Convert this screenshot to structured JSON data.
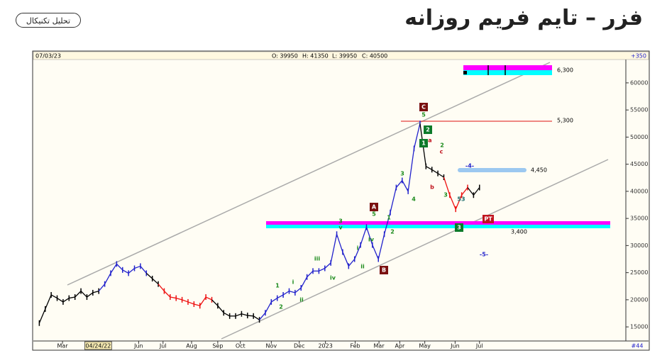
{
  "header": {
    "title": "فزر – تایم فریم روزانه",
    "button": "تحلیل تکنیکال"
  },
  "chart_data": {
    "type": "price",
    "info": {
      "date": "07/03/23",
      "open": "O: 39950",
      "high": "H: 41350",
      "low": "L: 39950",
      "close": "C: 40500",
      "change": "+350"
    },
    "corner": "#44",
    "categories": [
      null,
      null,
      null,
      null,
      null,
      null,
      null,
      null,
      null,
      null,
      null,
      null,
      null,
      null,
      null,
      null,
      null,
      null,
      null,
      null,
      null,
      null,
      null,
      null,
      null,
      null,
      null,
      null,
      null,
      null,
      null,
      null,
      null,
      null,
      null,
      null,
      null,
      null,
      null,
      null,
      null,
      null,
      null,
      null,
      null,
      null,
      null,
      null,
      null,
      null,
      null,
      null,
      null,
      null,
      null,
      null,
      null,
      null,
      null,
      null,
      null,
      null,
      null,
      null,
      null,
      null,
      null,
      null,
      null,
      null,
      null,
      null,
      null,
      null,
      null
    ],
    "values": [
      15700,
      18300,
      20900,
      20300,
      19600,
      20300,
      20500,
      21600,
      20500,
      21300,
      21600,
      22900,
      24900,
      26600,
      25500,
      24900,
      25800,
      26200,
      24900,
      23900,
      22900,
      21600,
      20500,
      20300,
      20000,
      19600,
      19200,
      18900,
      20500,
      20000,
      18900,
      17600,
      17000,
      17000,
      17400,
      17100,
      17000,
      16300,
      17600,
      19600,
      20300,
      20900,
      21600,
      21300,
      22200,
      24200,
      25300,
      25300,
      25800,
      26800,
      32100,
      28800,
      26200,
      27500,
      30100,
      33400,
      30100,
      27500,
      32100,
      36100,
      40700,
      42000,
      40000,
      47900,
      52500,
      44600,
      44000,
      43300,
      42600,
      39300,
      36700,
      39300,
      40700,
      39300,
      40700
    ],
    "point_colors": [
      "#000",
      "#000",
      "#000",
      "#000",
      "#000",
      "#000",
      "#000",
      "#000",
      "#000",
      "#000",
      "#000",
      "#22c",
      "#22c",
      "#22c",
      "#22c",
      "#22c",
      "#22c",
      "#22c",
      "#22c",
      "#000",
      "#000",
      "#e11",
      "#e11",
      "#e11",
      "#e11",
      "#e11",
      "#e11",
      "#e11",
      "#e11",
      "#e11",
      "#000",
      "#000",
      "#000",
      "#000",
      "#000",
      "#000",
      "#000",
      "#000",
      "#22c",
      "#22c",
      "#22c",
      "#22c",
      "#22c",
      "#22c",
      "#22c",
      "#22c",
      "#22c",
      "#22c",
      "#22c",
      "#22c",
      "#22c",
      "#22c",
      "#22c",
      "#22c",
      "#22c",
      "#22c",
      "#22c",
      "#22c",
      "#22c",
      "#22c",
      "#22c",
      "#22c",
      "#22c",
      "#22c",
      "#22c",
      "#000",
      "#000",
      "#000",
      "#000",
      "#e11",
      "#e11",
      "#e11",
      "#e11",
      "#000",
      "#000"
    ],
    "ylim": [
      12400,
      64300
    ],
    "yticks": [
      15000,
      20000,
      25000,
      30000,
      35000,
      40000,
      45000,
      50000,
      55000,
      60000
    ],
    "xticks": [
      {
        "value": 3.9,
        "label": "Mar"
      },
      {
        "value": 9.9,
        "label": "04/24/22"
      },
      {
        "value": 16.7,
        "label": "Jun"
      },
      {
        "value": 20.8,
        "label": "Jul"
      },
      {
        "value": 25.6,
        "label": "Aug"
      },
      {
        "value": 30.0,
        "label": "Sep"
      },
      {
        "value": 33.8,
        "label": "Oct"
      },
      {
        "value": 39.0,
        "label": "Nov"
      },
      {
        "value": 43.7,
        "label": "Dec"
      },
      {
        "value": 48.1,
        "label": "2023"
      },
      {
        "value": 53.1,
        "label": "Feb"
      },
      {
        "value": 57.1,
        "label": "Mar"
      },
      {
        "value": 60.6,
        "label": "Apr"
      },
      {
        "value": 64.8,
        "label": "May"
      },
      {
        "value": 69.9,
        "label": "Jun"
      },
      {
        "value": 74.0,
        "label": "Jul"
      }
    ],
    "xlim": [
      -1,
      98.6
    ],
    "levels": [
      "6,300",
      "5,300",
      "4,450",
      "3,400"
    ],
    "wave_labels": [
      {
        "text": "C",
        "color": "#7a1010",
        "box": true
      },
      {
        "text": "5",
        "color": "#1a8a1a",
        "box": false
      },
      {
        "text": "2",
        "color": "#0d7a2a",
        "box": true
      },
      {
        "text": "1",
        "color": "#0d7a2a",
        "box": true
      },
      {
        "text": "a",
        "color": "#c0141e",
        "box": false
      },
      {
        "text": "2",
        "color": "#1a8a1a",
        "box": false
      },
      {
        "text": "c",
        "color": "#c0141e",
        "box": false
      },
      {
        "text": "3",
        "color": "#1a8a1a",
        "box": false
      },
      {
        "text": "4",
        "color": "#1a8a1a",
        "box": false
      },
      {
        "text": "b",
        "color": "#c0141e",
        "box": false
      },
      {
        "text": "3",
        "color": "#1a8a1a",
        "box": false
      },
      {
        "text": "-4-",
        "color": "#2222cc",
        "box": false
      },
      {
        "text": "A",
        "color": "#7a1010",
        "box": true
      },
      {
        "text": "5",
        "color": "#1a8a1a",
        "box": false
      },
      {
        "text": "3",
        "color": "#1a8a1a",
        "box": false
      },
      {
        "text": "v",
        "color": "#1a8a1a",
        "box": false
      },
      {
        "text": "iii",
        "color": "#1a8a1a",
        "box": false
      },
      {
        "text": "iv",
        "color": "#1a8a1a",
        "box": false
      },
      {
        "text": "i",
        "color": "#1a8a1a",
        "box": false
      },
      {
        "text": "ii",
        "color": "#1a8a1a",
        "box": false
      },
      {
        "text": "1",
        "color": "#1a8a1a",
        "box": false
      },
      {
        "text": "2",
        "color": "#1a8a1a",
        "box": false
      },
      {
        "text": "i",
        "color": "#1a8a1a",
        "box": false
      },
      {
        "text": "ii",
        "color": "#1a8a1a",
        "box": false
      },
      {
        "text": "iv",
        "color": "#1a8a1a",
        "box": false
      },
      {
        "text": "1",
        "color": "#1a8a1a",
        "box": false
      },
      {
        "text": "2",
        "color": "#1a8a1a",
        "box": false
      },
      {
        "text": "B",
        "color": "#7a1010",
        "box": true
      },
      {
        "text": "53",
        "color": "#1a6a6a",
        "box": false
      },
      {
        "text": "3",
        "color": "#0d7a2a",
        "box": true
      },
      {
        "text": "-5-",
        "color": "#2222cc",
        "box": false
      },
      {
        "text": "PT",
        "color": "#c0141e",
        "box": true
      }
    ]
  }
}
